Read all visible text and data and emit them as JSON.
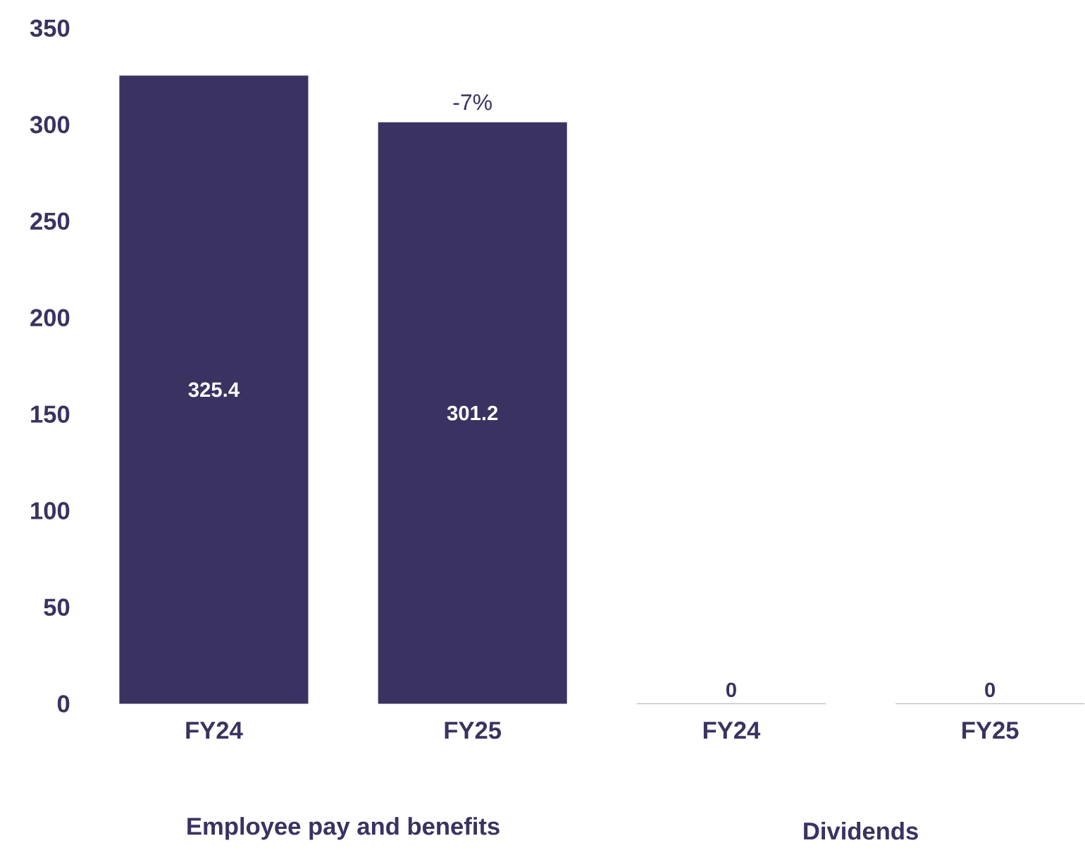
{
  "chart_data": {
    "type": "bar",
    "categories": [
      "FY24",
      "FY25",
      "FY24",
      "FY25"
    ],
    "values": [
      325.4,
      301.2,
      0,
      0
    ],
    "color": "#3a3361",
    "ylim": [
      0,
      350
    ],
    "yticks": [
      0,
      50,
      100,
      150,
      200,
      250,
      300,
      350
    ],
    "data_labels": true,
    "annotations": [
      {
        "text": "-7%",
        "x": "FY25",
        "y": 301.2
      },
      "Employee pay and benefits",
      "Dividends"
    ]
  }
}
